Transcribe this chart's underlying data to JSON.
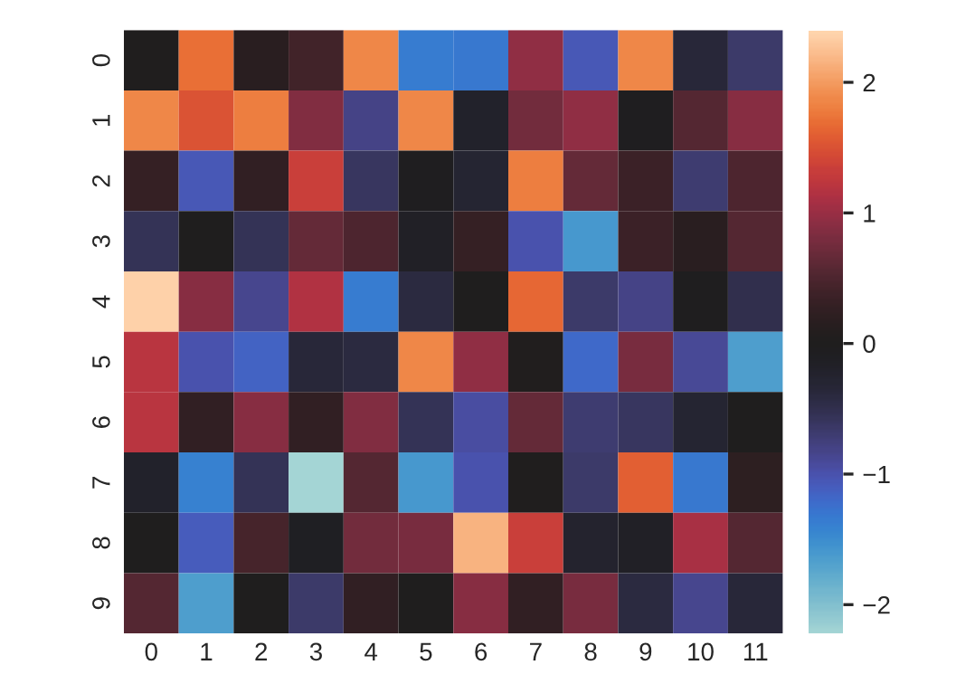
{
  "chart_data": {
    "type": "heatmap",
    "categories": [
      "0",
      "1",
      "2",
      "3",
      "4",
      "5",
      "6",
      "7",
      "8",
      "9",
      "10",
      "11"
    ],
    "y_categories": [
      "0",
      "1",
      "2",
      "3",
      "4",
      "5",
      "6",
      "7",
      "8",
      "9"
    ],
    "cells": [
      [
        0.02,
        1.7,
        0.15,
        0.4,
        1.85,
        -1.35,
        -1.3,
        0.95,
        -1.05,
        1.85,
        -0.35,
        -0.65
      ],
      [
        1.85,
        1.5,
        1.8,
        0.85,
        -0.8,
        1.85,
        -0.2,
        0.75,
        0.95,
        -0.05,
        0.55,
        0.9
      ],
      [
        0.3,
        -1.05,
        0.25,
        1.35,
        -0.6,
        -0.05,
        -0.3,
        1.8,
        0.65,
        0.35,
        -0.7,
        0.5
      ],
      [
        -0.55,
        0.0,
        -0.55,
        0.65,
        0.5,
        -0.15,
        0.3,
        -1.0,
        -1.6,
        0.35,
        0.15,
        0.55
      ],
      [
        2.35,
        0.9,
        -0.85,
        1.15,
        -1.35,
        -0.4,
        0.0,
        1.65,
        -0.65,
        -0.8,
        -0.02,
        -0.5
      ],
      [
        1.2,
        -1.0,
        -1.15,
        -0.35,
        -0.4,
        1.85,
        0.95,
        0.05,
        -1.2,
        0.8,
        -0.9,
        -1.65
      ],
      [
        1.2,
        0.25,
        0.9,
        0.25,
        0.85,
        -0.55,
        -0.95,
        0.65,
        -0.7,
        -0.6,
        -0.3,
        0.0
      ],
      [
        -0.2,
        -1.4,
        -0.55,
        -2.22,
        0.55,
        -1.6,
        -1.0,
        0.02,
        -0.65,
        1.6,
        -1.3,
        0.2
      ],
      [
        0.0,
        -1.1,
        0.45,
        -0.1,
        0.75,
        0.8,
        2.15,
        1.35,
        -0.25,
        -0.15,
        1.1,
        0.55
      ],
      [
        0.55,
        -1.65,
        0.0,
        -0.65,
        0.25,
        0.0,
        0.9,
        0.25,
        0.8,
        -0.4,
        -0.85,
        -0.35
      ]
    ],
    "clim": [
      -2.22,
      2.4
    ],
    "cticks": [
      -2,
      -1,
      0,
      1,
      2
    ]
  }
}
